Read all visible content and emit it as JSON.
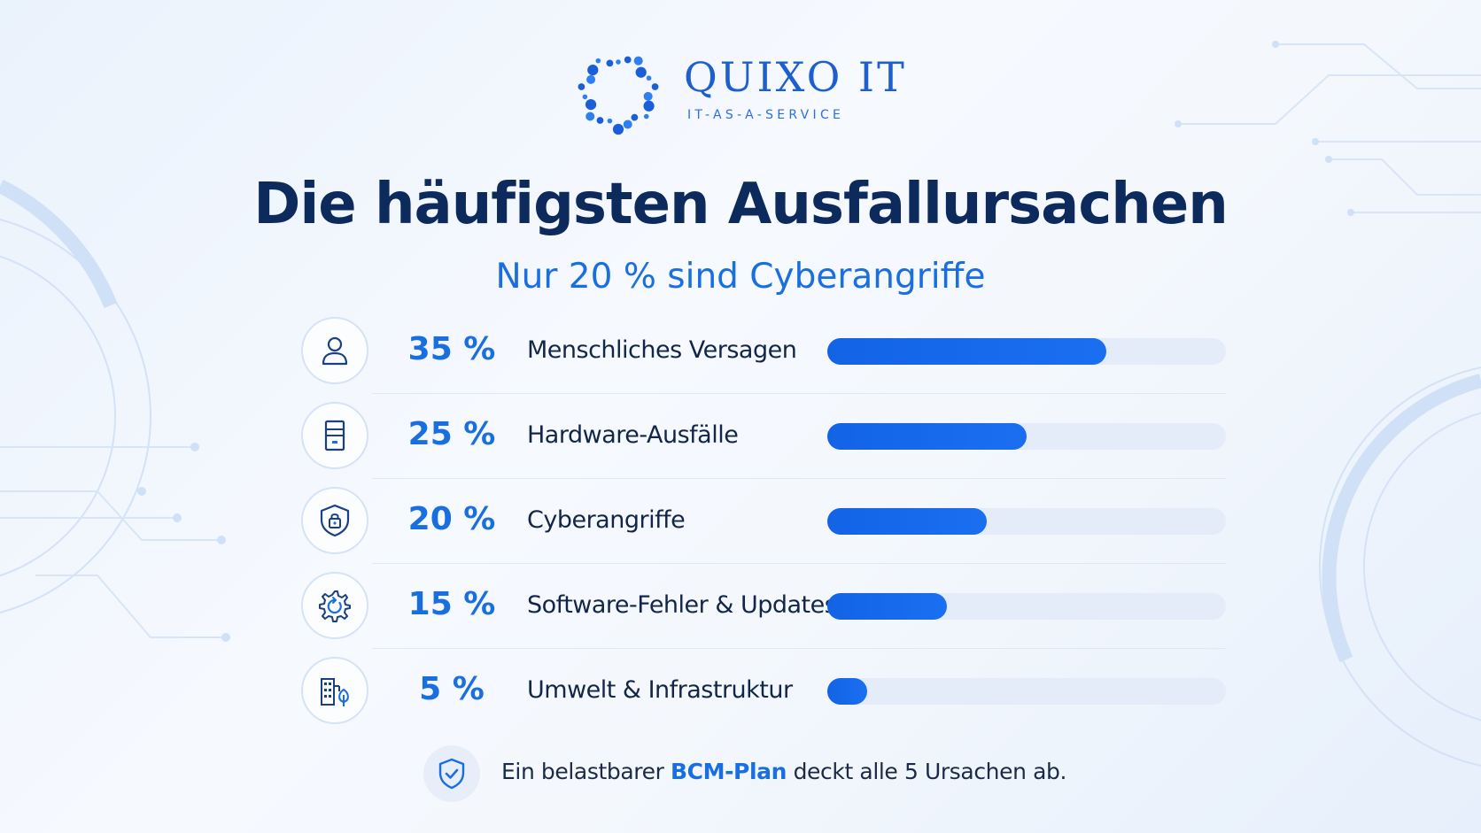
{
  "brand": {
    "name": "QUIXO IT",
    "tagline": "IT-AS-A-SERVICE"
  },
  "title": "Die häufigsten Ausfallursachen",
  "subtitle": "Nur 20 % sind Cyberangriffe",
  "colors": {
    "accent": "#1a6fe0",
    "title": "#0c2a5c",
    "track": "#e3ecf8"
  },
  "chart_data": {
    "type": "bar",
    "orientation": "horizontal",
    "categories": [
      "Menschliches Versagen",
      "Hardware-Ausfälle",
      "Cyberangriffe",
      "Software-Fehler & Updates",
      "Umwelt & Infrastruktur"
    ],
    "values": [
      35,
      25,
      20,
      15,
      5
    ],
    "value_labels": [
      "35 %",
      "25 %",
      "20 %",
      "15 %",
      "5 %"
    ],
    "icons": [
      "person-icon",
      "server-icon",
      "shield-lock-icon",
      "gear-refresh-icon",
      "building-tree-icon"
    ],
    "unit": "%",
    "xlim": [
      0,
      50
    ],
    "title": "Die häufigsten Ausfallursachen",
    "subtitle": "Nur 20 % sind Cyberangriffe"
  },
  "footer": {
    "icon": "shield-check-icon",
    "text_before": "Ein belastbarer ",
    "highlight": "BCM-Plan",
    "text_after": " deckt alle 5 Ursachen ab."
  }
}
